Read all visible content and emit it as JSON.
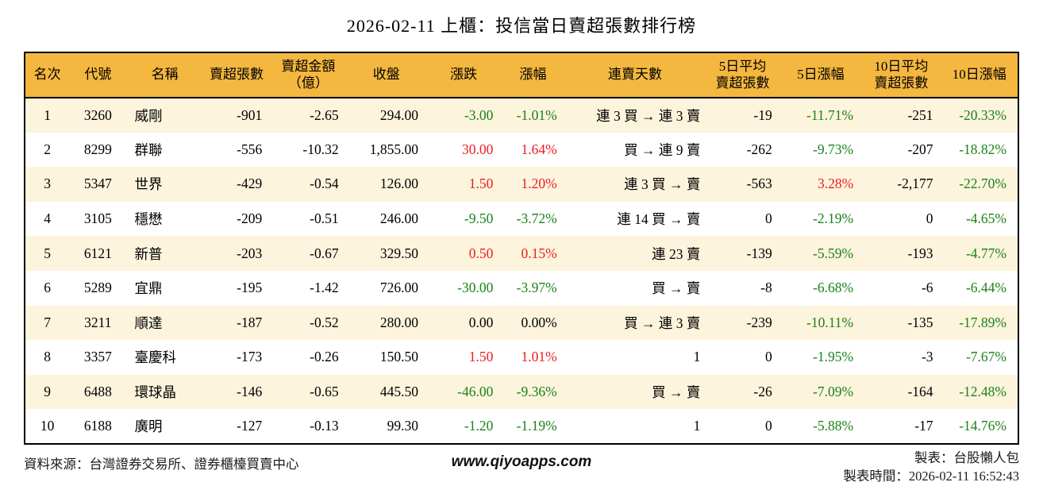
{
  "title": "2026-02-11 上櫃：投信當日賣超張數排行榜",
  "colors": {
    "header_bg": "#f4b73f",
    "row_alt_bg": "#fcf4dc",
    "up": "#ed1c24",
    "down": "#1b811b",
    "flat": "#000000"
  },
  "table": {
    "columns": [
      {
        "key": "rank",
        "label": "名次"
      },
      {
        "key": "code",
        "label": "代號"
      },
      {
        "key": "name",
        "label": "名稱"
      },
      {
        "key": "sell_volume",
        "label": "賣超張數"
      },
      {
        "key": "sell_amount",
        "label": "賣超金額\n（億）"
      },
      {
        "key": "close",
        "label": "收盤"
      },
      {
        "key": "change",
        "label": "漲跌"
      },
      {
        "key": "change_pct",
        "label": "漲幅"
      },
      {
        "key": "streak",
        "label": "連賣天數"
      },
      {
        "key": "avg5",
        "label": "5日平均\n賣超張數"
      },
      {
        "key": "pct5",
        "label": "5日漲幅"
      },
      {
        "key": "avg10",
        "label": "10日平均\n賣超張數"
      },
      {
        "key": "pct10",
        "label": "10日漲幅"
      }
    ],
    "rows": [
      {
        "rank": "1",
        "code": "3260",
        "name": "威剛",
        "sell_volume": "-901",
        "sell_amount": "-2.65",
        "close": "294.00",
        "change": {
          "text": "-3.00",
          "tone": "down"
        },
        "change_pct": {
          "text": "-1.01%",
          "tone": "down"
        },
        "streak": "連 3 買 → 連 3 賣",
        "avg5": "-19",
        "pct5": {
          "text": "-11.71%",
          "tone": "down"
        },
        "avg10": "-251",
        "pct10": {
          "text": "-20.33%",
          "tone": "down"
        }
      },
      {
        "rank": "2",
        "code": "8299",
        "name": "群聯",
        "sell_volume": "-556",
        "sell_amount": "-10.32",
        "close": "1,855.00",
        "change": {
          "text": "30.00",
          "tone": "up"
        },
        "change_pct": {
          "text": "1.64%",
          "tone": "up"
        },
        "streak": "買 → 連 9 賣",
        "avg5": "-262",
        "pct5": {
          "text": "-9.73%",
          "tone": "down"
        },
        "avg10": "-207",
        "pct10": {
          "text": "-18.82%",
          "tone": "down"
        }
      },
      {
        "rank": "3",
        "code": "5347",
        "name": "世界",
        "sell_volume": "-429",
        "sell_amount": "-0.54",
        "close": "126.00",
        "change": {
          "text": "1.50",
          "tone": "up"
        },
        "change_pct": {
          "text": "1.20%",
          "tone": "up"
        },
        "streak": "連 3 買 → 賣",
        "avg5": "-563",
        "pct5": {
          "text": "3.28%",
          "tone": "up"
        },
        "avg10": "-2,177",
        "pct10": {
          "text": "-22.70%",
          "tone": "down"
        }
      },
      {
        "rank": "4",
        "code": "3105",
        "name": "穩懋",
        "sell_volume": "-209",
        "sell_amount": "-0.51",
        "close": "246.00",
        "change": {
          "text": "-9.50",
          "tone": "down"
        },
        "change_pct": {
          "text": "-3.72%",
          "tone": "down"
        },
        "streak": "連 14 買 → 賣",
        "avg5": "0",
        "pct5": {
          "text": "-2.19%",
          "tone": "down"
        },
        "avg10": "0",
        "pct10": {
          "text": "-4.65%",
          "tone": "down"
        }
      },
      {
        "rank": "5",
        "code": "6121",
        "name": "新普",
        "sell_volume": "-203",
        "sell_amount": "-0.67",
        "close": "329.50",
        "change": {
          "text": "0.50",
          "tone": "up"
        },
        "change_pct": {
          "text": "0.15%",
          "tone": "up"
        },
        "streak": "連 23 賣",
        "avg5": "-139",
        "pct5": {
          "text": "-5.59%",
          "tone": "down"
        },
        "avg10": "-193",
        "pct10": {
          "text": "-4.77%",
          "tone": "down"
        }
      },
      {
        "rank": "6",
        "code": "5289",
        "name": "宜鼎",
        "sell_volume": "-195",
        "sell_amount": "-1.42",
        "close": "726.00",
        "change": {
          "text": "-30.00",
          "tone": "down"
        },
        "change_pct": {
          "text": "-3.97%",
          "tone": "down"
        },
        "streak": "買 → 賣",
        "avg5": "-8",
        "pct5": {
          "text": "-6.68%",
          "tone": "down"
        },
        "avg10": "-6",
        "pct10": {
          "text": "-6.44%",
          "tone": "down"
        }
      },
      {
        "rank": "7",
        "code": "3211",
        "name": "順達",
        "sell_volume": "-187",
        "sell_amount": "-0.52",
        "close": "280.00",
        "change": {
          "text": "0.00",
          "tone": "flat"
        },
        "change_pct": {
          "text": "0.00%",
          "tone": "flat"
        },
        "streak": "買 → 連 3 賣",
        "avg5": "-239",
        "pct5": {
          "text": "-10.11%",
          "tone": "down"
        },
        "avg10": "-135",
        "pct10": {
          "text": "-17.89%",
          "tone": "down"
        }
      },
      {
        "rank": "8",
        "code": "3357",
        "name": "臺慶科",
        "sell_volume": "-173",
        "sell_amount": "-0.26",
        "close": "150.50",
        "change": {
          "text": "1.50",
          "tone": "up"
        },
        "change_pct": {
          "text": "1.01%",
          "tone": "up"
        },
        "streak": "1",
        "avg5": "0",
        "pct5": {
          "text": "-1.95%",
          "tone": "down"
        },
        "avg10": "-3",
        "pct10": {
          "text": "-7.67%",
          "tone": "down"
        }
      },
      {
        "rank": "9",
        "code": "6488",
        "name": "環球晶",
        "sell_volume": "-146",
        "sell_amount": "-0.65",
        "close": "445.50",
        "change": {
          "text": "-46.00",
          "tone": "down"
        },
        "change_pct": {
          "text": "-9.36%",
          "tone": "down"
        },
        "streak": "買 → 賣",
        "avg5": "-26",
        "pct5": {
          "text": "-7.09%",
          "tone": "down"
        },
        "avg10": "-164",
        "pct10": {
          "text": "-12.48%",
          "tone": "down"
        }
      },
      {
        "rank": "10",
        "code": "6188",
        "name": "廣明",
        "sell_volume": "-127",
        "sell_amount": "-0.13",
        "close": "99.30",
        "change": {
          "text": "-1.20",
          "tone": "down"
        },
        "change_pct": {
          "text": "-1.19%",
          "tone": "down"
        },
        "streak": "1",
        "avg5": "0",
        "pct5": {
          "text": "-5.88%",
          "tone": "down"
        },
        "avg10": "-17",
        "pct10": {
          "text": "-14.76%",
          "tone": "down"
        }
      }
    ]
  },
  "footer": {
    "source": "資料來源：台灣證券交易所、證券櫃檯買賣中心",
    "website": "www.qiyoapps.com",
    "maker": "製表：台股懶人包",
    "made_time": "製表時間：2026-02-11 16:52:43"
  },
  "chart_data": {
    "type": "table",
    "title": "2026-02-11 上櫃：投信當日賣超張數排行榜",
    "columns": [
      "名次",
      "代號",
      "名稱",
      "賣超張數",
      "賣超金額（億）",
      "收盤",
      "漲跌",
      "漲幅",
      "連賣天數",
      "5日平均賣超張數",
      "5日漲幅",
      "10日平均賣超張數",
      "10日漲幅"
    ],
    "rows": [
      [
        "1",
        "3260",
        "威剛",
        "-901",
        "-2.65",
        "294.00",
        "-3.00",
        "-1.01%",
        "連 3 買 → 連 3 賣",
        "-19",
        "-11.71%",
        "-251",
        "-20.33%"
      ],
      [
        "2",
        "8299",
        "群聯",
        "-556",
        "-10.32",
        "1,855.00",
        "30.00",
        "1.64%",
        "買 → 連 9 賣",
        "-262",
        "-9.73%",
        "-207",
        "-18.82%"
      ],
      [
        "3",
        "5347",
        "世界",
        "-429",
        "-0.54",
        "126.00",
        "1.50",
        "1.20%",
        "連 3 買 → 賣",
        "-563",
        "3.28%",
        "-2,177",
        "-22.70%"
      ],
      [
        "4",
        "3105",
        "穩懋",
        "-209",
        "-0.51",
        "246.00",
        "-9.50",
        "-3.72%",
        "連 14 買 → 賣",
        "0",
        "-2.19%",
        "0",
        "-4.65%"
      ],
      [
        "5",
        "6121",
        "新普",
        "-203",
        "-0.67",
        "329.50",
        "0.50",
        "0.15%",
        "連 23 賣",
        "-139",
        "-5.59%",
        "-193",
        "-4.77%"
      ],
      [
        "6",
        "5289",
        "宜鼎",
        "-195",
        "-1.42",
        "726.00",
        "-30.00",
        "-3.97%",
        "買 → 賣",
        "-8",
        "-6.68%",
        "-6",
        "-6.44%"
      ],
      [
        "7",
        "3211",
        "順達",
        "-187",
        "-0.52",
        "280.00",
        "0.00",
        "0.00%",
        "買 → 連 3 賣",
        "-239",
        "-10.11%",
        "-135",
        "-17.89%"
      ],
      [
        "8",
        "3357",
        "臺慶科",
        "-173",
        "-0.26",
        "150.50",
        "1.50",
        "1.01%",
        "1",
        "0",
        "-1.95%",
        "-3",
        "-7.67%"
      ],
      [
        "9",
        "6488",
        "環球晶",
        "-146",
        "-0.65",
        "445.50",
        "-46.00",
        "-9.36%",
        "買 → 賣",
        "-26",
        "-7.09%",
        "-164",
        "-12.48%"
      ],
      [
        "10",
        "6188",
        "廣明",
        "-127",
        "-0.13",
        "99.30",
        "-1.20",
        "-1.19%",
        "1",
        "0",
        "-5.88%",
        "-17",
        "-14.76%"
      ]
    ]
  }
}
